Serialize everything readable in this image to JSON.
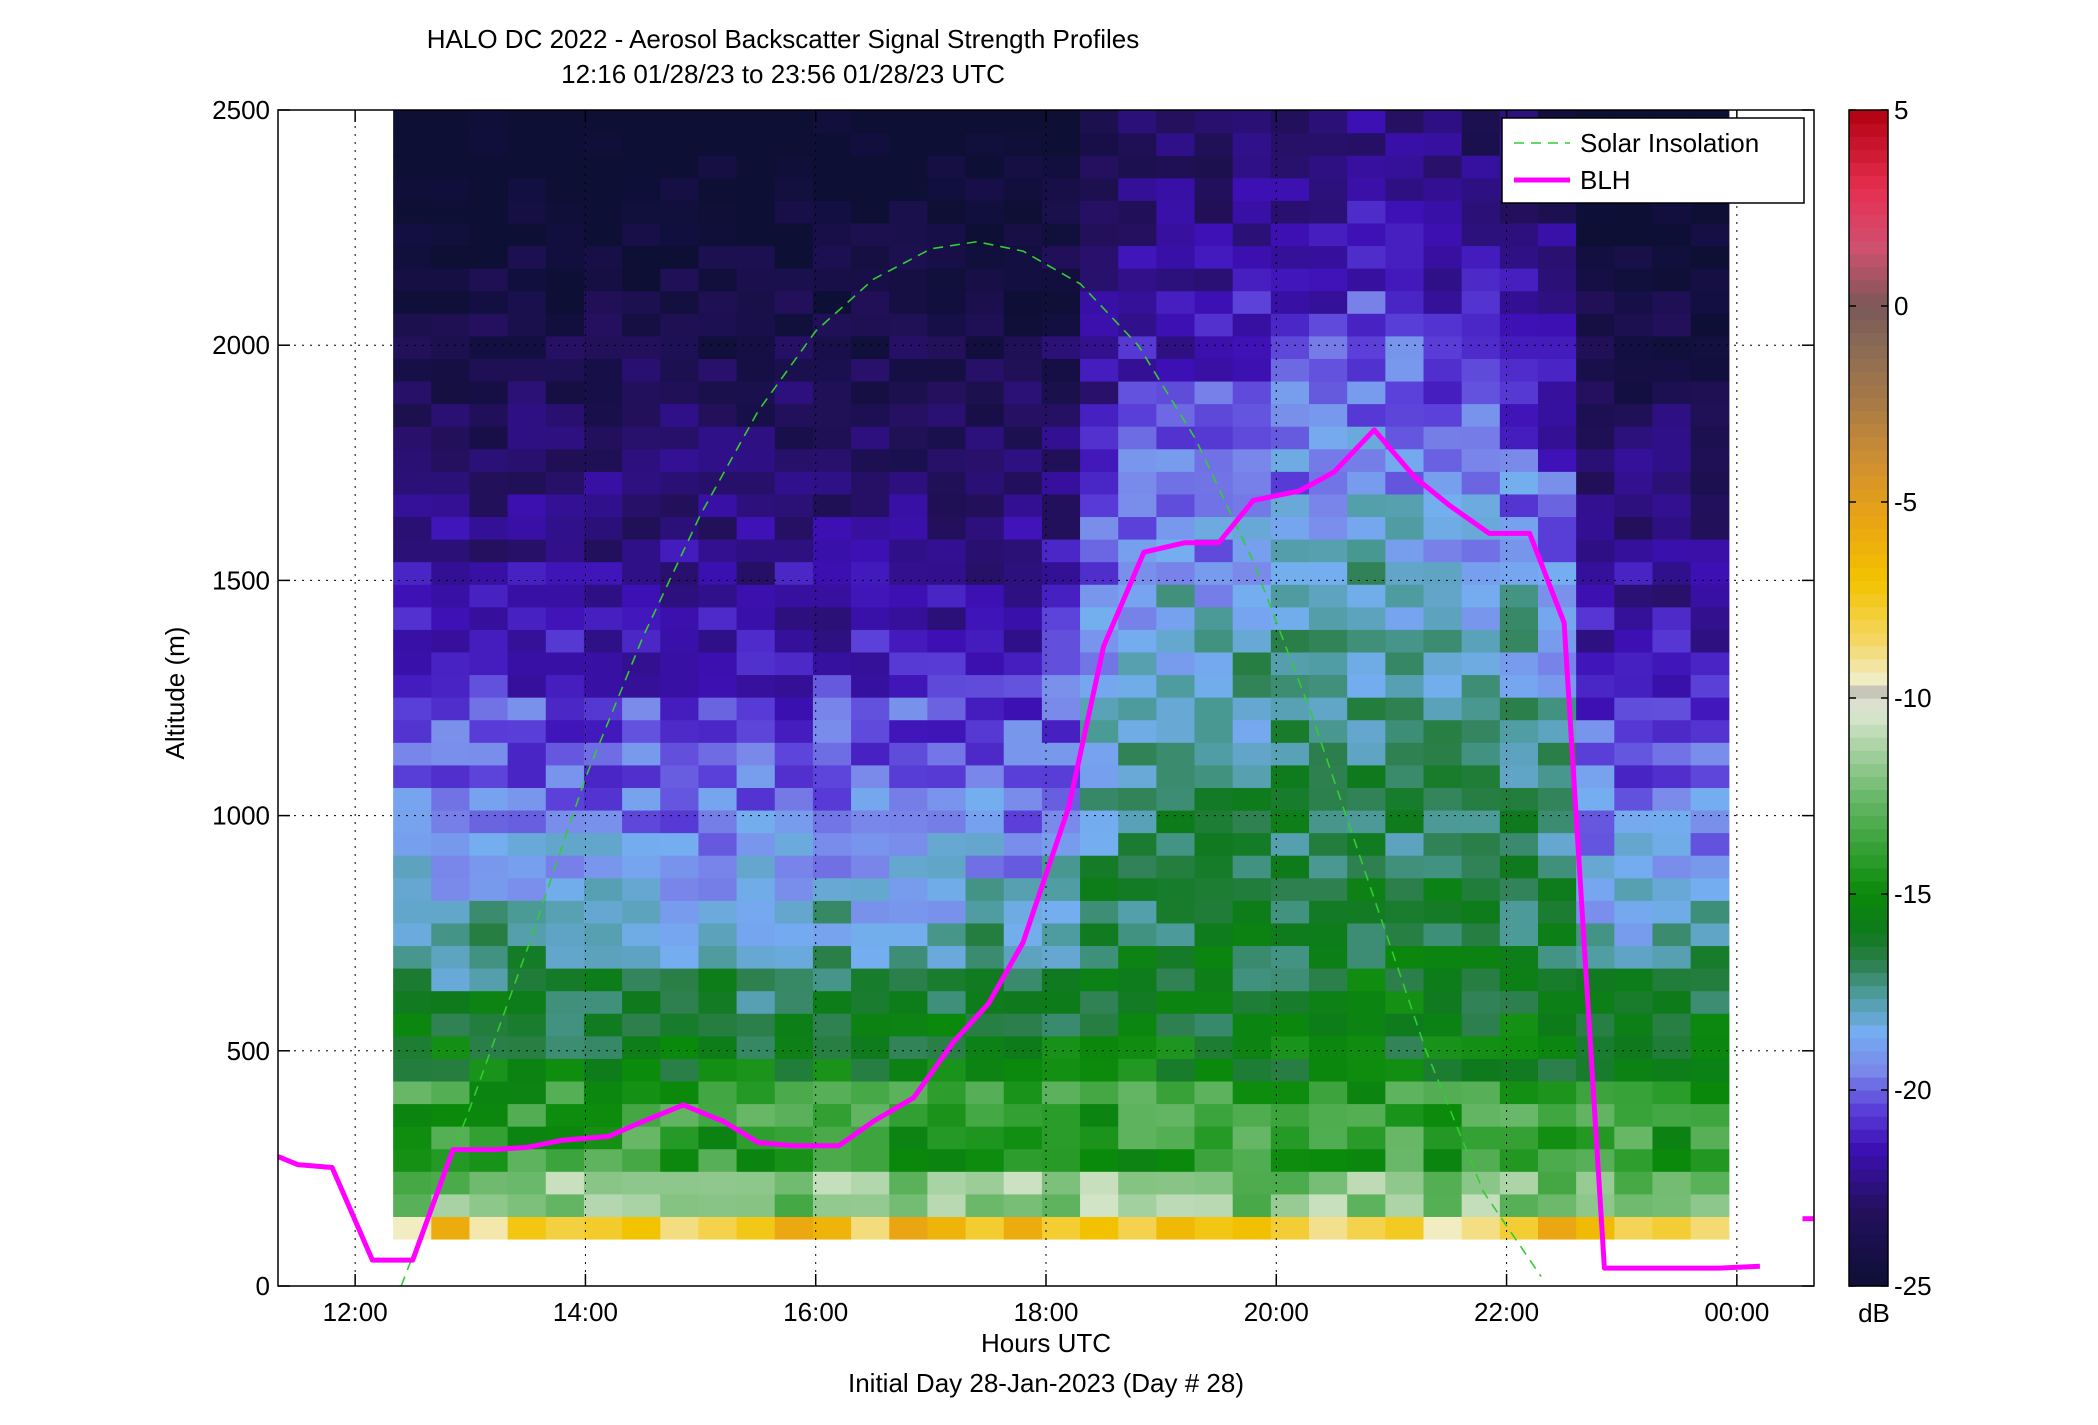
{
  "chart_data": {
    "type": "heatmap",
    "title": "HALO DC 2022 - Aerosol Backscatter Signal Strength Profiles",
    "subtitle": "12:16 01/28/23 to 23:56 01/28/23  UTC",
    "xlabel": "Hours UTC",
    "xlabel2": "Initial Day 28-Jan-2023 (Day # 28)",
    "ylabel": "Altitude (m)",
    "colorbar_label": "dB",
    "x_ticks": [
      {
        "v": 12,
        "label": "12:00"
      },
      {
        "v": 14,
        "label": "14:00"
      },
      {
        "v": 16,
        "label": "16:00"
      },
      {
        "v": 18,
        "label": "18:00"
      },
      {
        "v": 20,
        "label": "20:00"
      },
      {
        "v": 22,
        "label": "22:00"
      },
      {
        "v": 24,
        "label": "00:00"
      }
    ],
    "y_ticks": [
      {
        "v": 0,
        "label": "0"
      },
      {
        "v": 500,
        "label": "500"
      },
      {
        "v": 1000,
        "label": "1000"
      },
      {
        "v": 1500,
        "label": "1500"
      },
      {
        "v": 2000,
        "label": "2000"
      },
      {
        "v": 2500,
        "label": "2500"
      }
    ],
    "colorbar_ticks": [
      {
        "v": 5,
        "label": "5"
      },
      {
        "v": 0,
        "label": "0"
      },
      {
        "v": -5,
        "label": "-5"
      },
      {
        "v": -10,
        "label": "-10"
      },
      {
        "v": -15,
        "label": "-15"
      },
      {
        "v": -20,
        "label": "-20"
      },
      {
        "v": -25,
        "label": "-25"
      }
    ],
    "xlim": [
      11.33,
      24.67
    ],
    "ylim": [
      0,
      2500
    ],
    "clim": [
      -25,
      5
    ],
    "grid": true,
    "legend_position": "top-right",
    "heatmap_extent": {
      "x0": 12.33,
      "x1": 23.93,
      "y0": 100,
      "y1": 2500
    },
    "colormap_stops": [
      [
        -25,
        "#0d0f35"
      ],
      [
        -23,
        "#24105e"
      ],
      [
        -21.5,
        "#3d10b5"
      ],
      [
        -20.5,
        "#5a3ed8"
      ],
      [
        -19.5,
        "#7a88ea"
      ],
      [
        -18.5,
        "#74aef0"
      ],
      [
        -17.5,
        "#4a9a96"
      ],
      [
        -16.8,
        "#2f8050"
      ],
      [
        -16,
        "#0e7a1d"
      ],
      [
        -15,
        "#0a8a0a"
      ],
      [
        -14,
        "#2e9e2e"
      ],
      [
        -12.5,
        "#6ab86a"
      ],
      [
        -11,
        "#b6d8b0"
      ],
      [
        -10.2,
        "#e6ecd6"
      ],
      [
        -10,
        "#aaaaaa"
      ],
      [
        -9.6,
        "#f2eecc"
      ],
      [
        -8.5,
        "#f4d660"
      ],
      [
        -7,
        "#f2c300"
      ],
      [
        -5.5,
        "#eaa612"
      ],
      [
        -4,
        "#d09030"
      ],
      [
        -2.5,
        "#a87a45"
      ],
      [
        -1,
        "#8a6a55"
      ],
      [
        0,
        "#7a5858"
      ],
      [
        1.5,
        "#d05070"
      ],
      [
        3,
        "#e62e50"
      ],
      [
        5,
        "#b00010"
      ]
    ],
    "series": [
      {
        "name": "Solar Insolation",
        "color": "#33cc33",
        "style": "dashed",
        "x": [
          12.4,
          13.0,
          13.5,
          14.0,
          14.5,
          15.0,
          15.5,
          16.0,
          16.5,
          17.0,
          17.4,
          17.8,
          18.3,
          18.8,
          19.3,
          19.8,
          20.3,
          20.8,
          21.3,
          21.8,
          22.3
        ],
        "y": [
          0,
          380,
          720,
          1080,
          1380,
          1640,
          1860,
          2030,
          2140,
          2205,
          2220,
          2200,
          2130,
          2000,
          1800,
          1540,
          1220,
          860,
          500,
          200,
          20
        ]
      },
      {
        "name": "BLH",
        "color": "#ff00ff",
        "style": "solid",
        "x": [
          11.33,
          11.5,
          11.8,
          12.15,
          12.5,
          12.85,
          13.2,
          13.5,
          13.8,
          14.2,
          14.5,
          14.85,
          15.2,
          15.5,
          15.8,
          16.2,
          16.5,
          16.85,
          17.2,
          17.5,
          17.8,
          18.2,
          18.5,
          18.85,
          19.2,
          19.5,
          19.8,
          20.2,
          20.5,
          20.85,
          21.2,
          21.5,
          21.85,
          22.2,
          22.5,
          22.85,
          23.2,
          23.5,
          23.85,
          24.2
        ],
        "y": [
          275,
          258,
          252,
          55,
          55,
          290,
          290,
          295,
          310,
          318,
          350,
          385,
          350,
          305,
          298,
          298,
          350,
          400,
          520,
          600,
          730,
          1020,
          1360,
          1560,
          1580,
          1580,
          1670,
          1690,
          1730,
          1820,
          1720,
          1660,
          1600,
          1600,
          1410,
          38,
          38,
          38,
          38,
          42
        ]
      },
      {
        "name": "",
        "color": "#ff00ff",
        "style": "solid",
        "x": [
          24.57,
          24.67
        ],
        "y": [
          143,
          143
        ]
      }
    ]
  }
}
